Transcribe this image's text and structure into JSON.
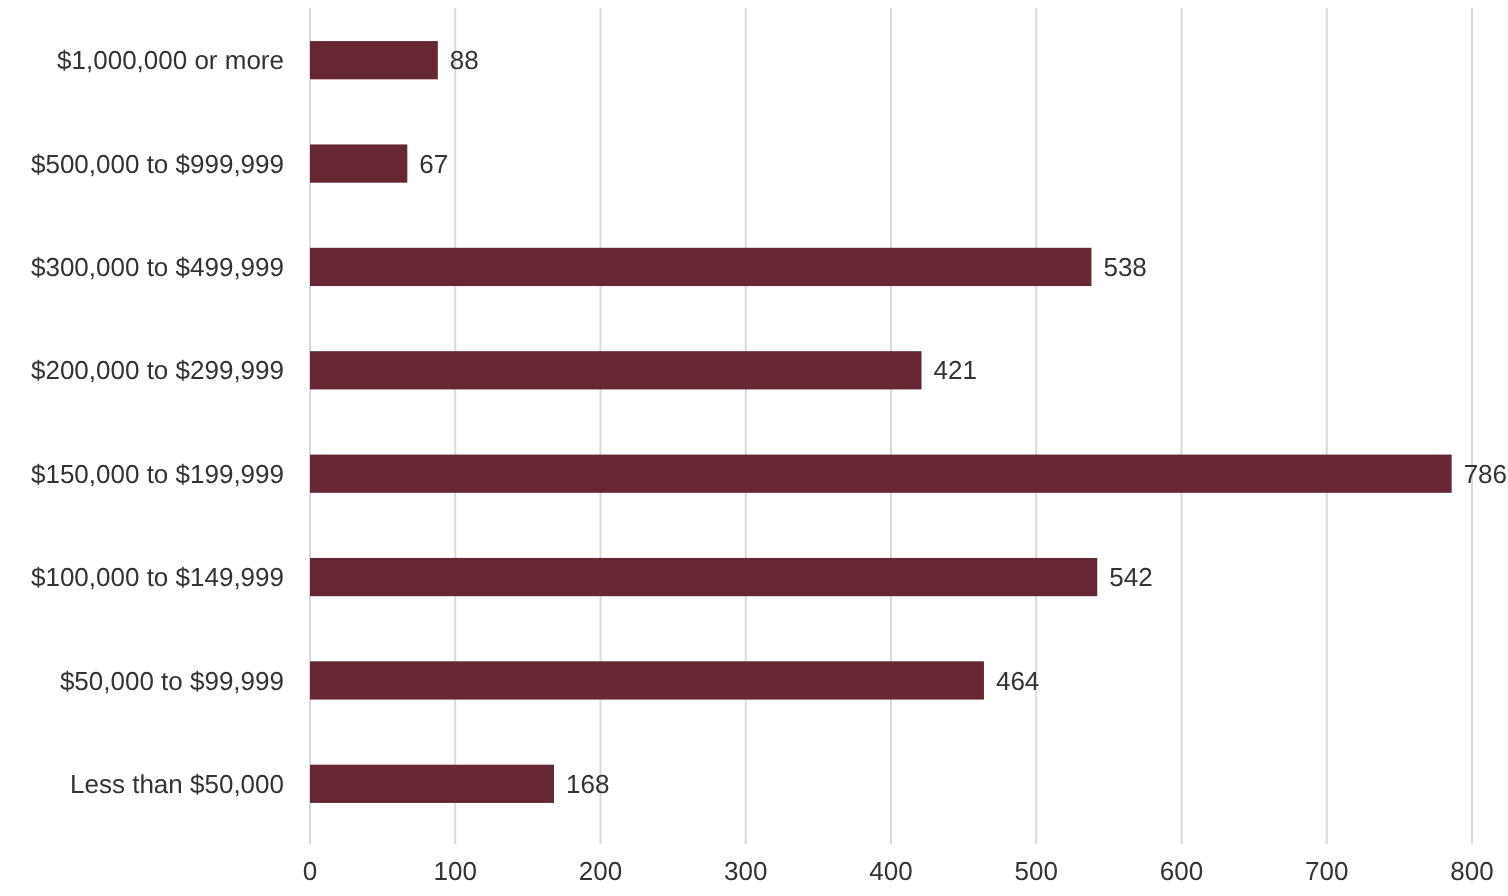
{
  "chart_data": {
    "type": "bar",
    "orientation": "horizontal",
    "categories": [
      "$1,000,000 or more",
      "$500,000 to $999,999",
      "$300,000 to $499,999",
      "$200,000 to $299,999",
      "$150,000 to $199,999",
      "$100,000 to $149,999",
      "$50,000 to $99,999",
      "Less than $50,000"
    ],
    "values": [
      88,
      67,
      538,
      421,
      786,
      542,
      464,
      168
    ],
    "color": "#662733",
    "xlim": [
      0,
      800
    ],
    "xticks": [
      0,
      100,
      200,
      300,
      400,
      500,
      600,
      700,
      800
    ],
    "grid": "x",
    "data_labels": true
  }
}
